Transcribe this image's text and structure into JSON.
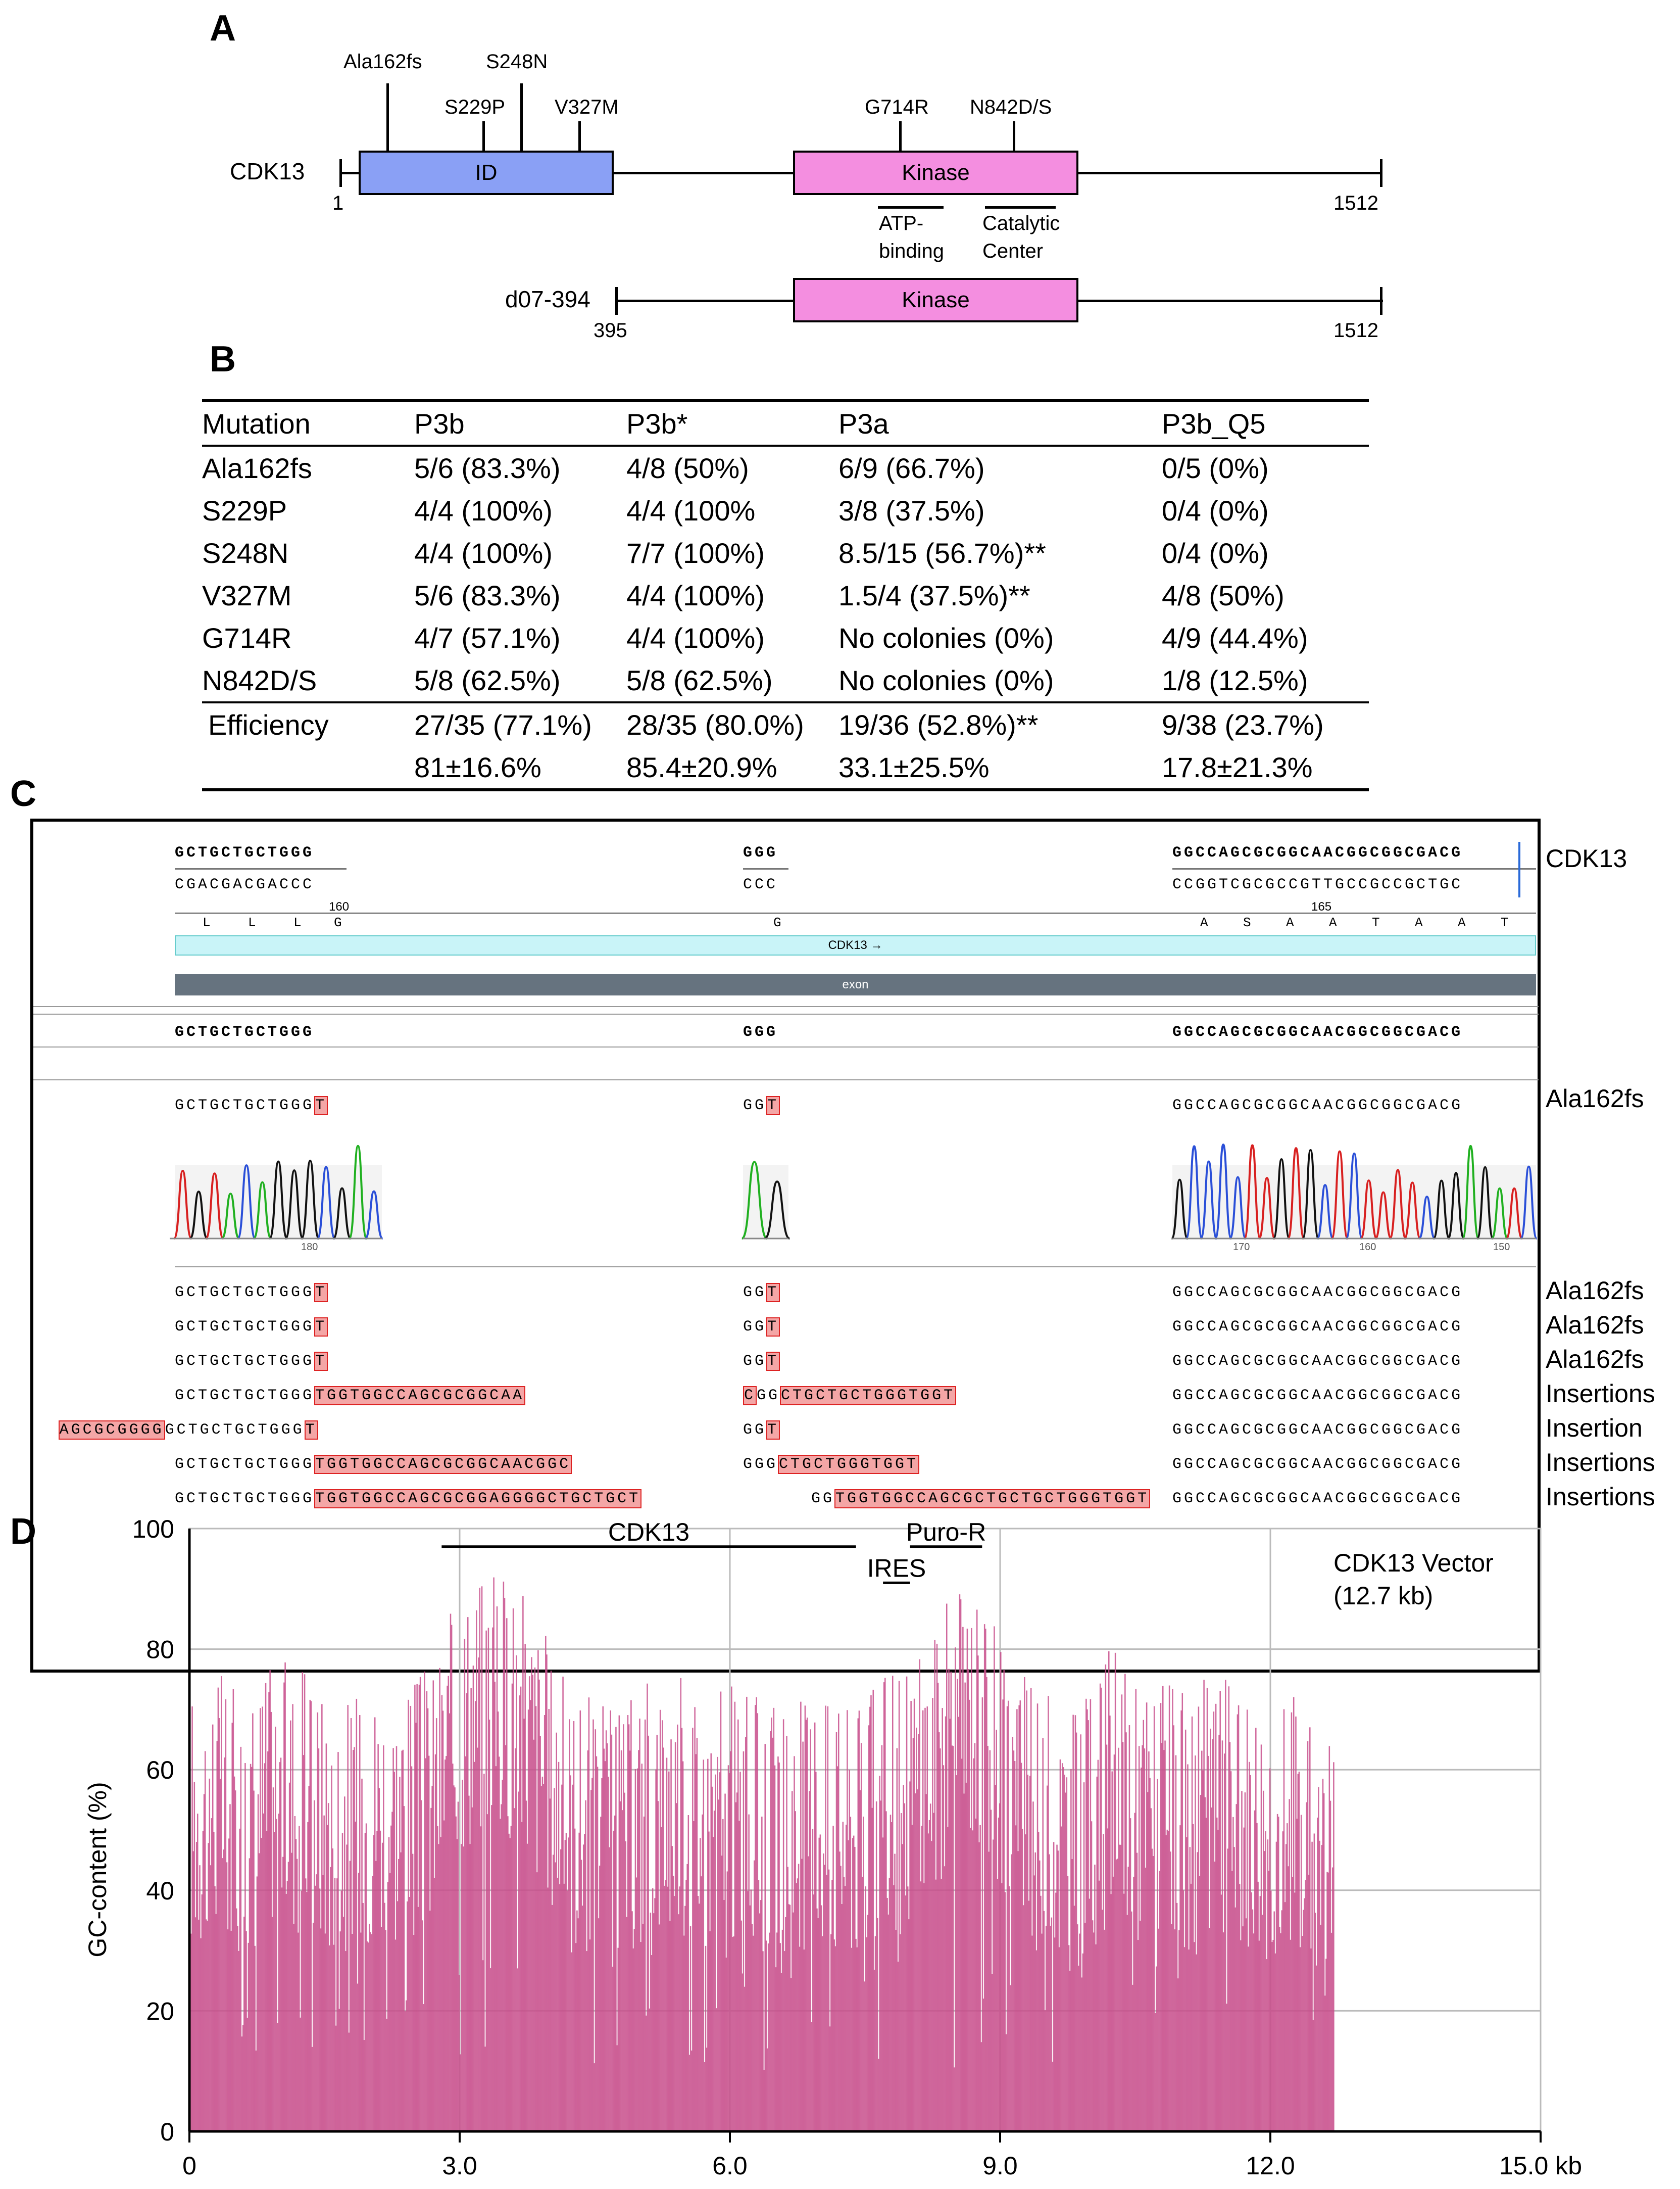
{
  "panels": {
    "a": "A",
    "b": "B",
    "c": "C",
    "d": "D"
  },
  "panel_a": {
    "protein_label": "CDK13",
    "start": "1",
    "end": "1512",
    "domain_id": "ID",
    "domain_kinase": "Kinase",
    "mutations": [
      "Ala162fs",
      "S248N",
      "S229P",
      "V327M",
      "G714R",
      "N842D/S"
    ],
    "atp_binding": [
      "ATP-",
      "binding"
    ],
    "catalytic_center": [
      "Catalytic",
      "Center"
    ],
    "truncated_label": "d07-394",
    "truncated_start": "395",
    "truncated_end": "1512",
    "truncated_kinase": "Kinase"
  },
  "panel_b": {
    "headers": [
      "Mutation",
      "P3b",
      "P3b*",
      "P3a",
      "P3b_Q5"
    ],
    "rows": [
      [
        "Ala162fs",
        "5/6 (83.3%)",
        "4/8 (50%)",
        "6/9 (66.7%)",
        "0/5 (0%)"
      ],
      [
        "S229P",
        "4/4 (100%)",
        "4/4 (100%",
        "3/8 (37.5%)",
        "0/4 (0%)"
      ],
      [
        "S248N",
        "4/4 (100%)",
        "7/7 (100%)",
        "8.5/15 (56.7%)**",
        "0/4 (0%)"
      ],
      [
        "V327M",
        "5/6 (83.3%)",
        "4/4 (100%)",
        "1.5/4 (37.5%)**",
        "4/8 (50%)"
      ],
      [
        "G714R",
        "4/7 (57.1%)",
        "4/4 (100%)",
        "No colonies (0%)",
        "4/9 (44.4%)"
      ],
      [
        "N842D/S",
        "5/8 (62.5%)",
        "5/8 (62.5%)",
        "No colonies (0%)",
        "1/8 (12.5%)"
      ]
    ],
    "efficiency_label": "Efficiency",
    "efficiency": [
      "27/35 (77.1%)",
      "28/35 (80.0%)",
      "19/36 (52.8%)**",
      "9/38 (23.7%)"
    ],
    "mean_sd": [
      "81±16.6%",
      "85.4±20.9%",
      "33.1±25.5%",
      "17.8±21.3%"
    ]
  },
  "panel_c": {
    "ref_top": [
      "GCTGCTGCTGGG",
      "GGG",
      "GGCCAGCGCGGCAACGGCGGCGACG"
    ],
    "ref_comp": [
      "CGACGACGACCC",
      "CCC",
      "CCGGTCGCGCCGTTGCCGCCGCTGC"
    ],
    "pos_160": "160",
    "pos_165": "165",
    "aa_left": [
      "L",
      "L",
      "L",
      "G"
    ],
    "aa_mid": "G",
    "aa_right": [
      "A",
      "S",
      "A",
      "A",
      "T",
      "A",
      "A",
      "T"
    ],
    "gene_bar": "CDK13 →",
    "exon_bar": "exon",
    "consensus": [
      "GCTGCTGCTGGG",
      "GGG",
      "GGCCAGCGCGGCAACGGCGGCGACG"
    ],
    "trace_seq": {
      "left": "GCTGCTGCTGGG",
      "left_ins": "T",
      "mid": "GG",
      "mid_ins": "T",
      "right": "GGCCAGCGCGGCAACGGCGGCGACG"
    },
    "trace_ticks": [
      "180",
      "170",
      "160",
      "150"
    ],
    "right_labels": [
      "CDK13",
      "Ala162fs"
    ],
    "reads": [
      {
        "pre": "",
        "left": "GCTGCTGCTGGG",
        "lins": "T",
        "mpre": "",
        "mid": "GG",
        "mins": "T",
        "mpost": "",
        "right": "GGCCAGCGCGGCAACGGCGGCGACG",
        "label": "Ala162fs"
      },
      {
        "pre": "",
        "left": "GCTGCTGCTGGG",
        "lins": "T",
        "mpre": "",
        "mid": "GG",
        "mins": "T",
        "mpost": "",
        "right": "GGCCAGCGCGGCAACGGCGGCGACG",
        "label": "Ala162fs"
      },
      {
        "pre": "",
        "left": "GCTGCTGCTGGG",
        "lins": "T",
        "mpre": "",
        "mid": "GG",
        "mins": "T",
        "mpost": "",
        "right": "GGCCAGCGCGGCAACGGCGGCGACG",
        "label": "Ala162fs"
      },
      {
        "pre": "",
        "left": "GCTGCTGCTGGG",
        "lins": "TGGTGGCCAGCGCGGCAA",
        "mpre": "C",
        "mid": "GG",
        "mins": "CTGCTGCTGGGTGGT",
        "mpost": "",
        "right": "GGCCAGCGCGGCAACGGCGGCGACG",
        "label": "Insertions"
      },
      {
        "pre": "AGCGCGGGG",
        "left": "GCTGCTGCTGGG",
        "lins": "T",
        "mpre": "",
        "mid": "GG",
        "mins": "T",
        "mpost": "",
        "right": "GGCCAGCGCGGCAACGGCGGCGACG",
        "label": "Insertion"
      },
      {
        "pre": "",
        "left": "GCTGCTGCTGGG",
        "lins": "TGGTGGCCAGCGCGGCAACGGC",
        "mpre": "",
        "mid": "GGG",
        "mins": "CTGCTGGGTGGT",
        "mpost": "",
        "right": "GGCCAGCGCGGCAACGGCGGCGACG",
        "label": "Insertions"
      },
      {
        "pre": "",
        "left": "GCTGCTGCTGGG",
        "lins": "TGGTGGCCAGCGCGGAGGGGCTGCTGCT",
        "mpre": "",
        "mid": "GG",
        "mins": "TGGTGGCCAGCGCTGCTGCTGGGTGGT",
        "mpost": "",
        "right": "GGCCAGCGCGGCAACGGCGGCGACG",
        "label": "Insertions"
      }
    ]
  },
  "chart_data": {
    "type": "bar",
    "title": "CDK13 Vector",
    "subtitle": "(12.7 kb)",
    "xlabel": "kb",
    "ylabel": "GC-content (%)",
    "xlim": [
      0,
      15.0
    ],
    "ylim": [
      0,
      100
    ],
    "xticks": [
      "0",
      "3.0",
      "6.0",
      "9.0",
      "12.0",
      "15.0 kb"
    ],
    "yticks": [
      "0",
      "20",
      "40",
      "60",
      "80",
      "100"
    ],
    "bar_color": "#c84f8c",
    "grid": true,
    "annotations": [
      {
        "label": "CDK13",
        "x_start": 2.8,
        "x_end": 7.4,
        "y": 97
      },
      {
        "label": "IRES",
        "x_start": 7.7,
        "x_end": 8.0,
        "y": 91
      },
      {
        "label": "Puro-R",
        "x_start": 8.0,
        "x_end": 8.8,
        "y": 97
      }
    ],
    "x": [
      0.0,
      0.3,
      0.6,
      0.9,
      1.2,
      1.5,
      1.8,
      2.1,
      2.4,
      2.7,
      3.0,
      3.3,
      3.6,
      3.9,
      4.2,
      4.5,
      4.8,
      5.1,
      5.4,
      5.7,
      6.0,
      6.3,
      6.6,
      6.9,
      7.2,
      7.5,
      7.8,
      8.1,
      8.4,
      8.7,
      9.0,
      9.3,
      9.6,
      9.9,
      10.2,
      10.5,
      10.8,
      11.1,
      11.4,
      11.7,
      12.0,
      12.3,
      12.6
    ],
    "values": [
      52,
      55,
      50,
      57,
      55,
      52,
      50,
      54,
      52,
      56,
      68,
      72,
      70,
      62,
      52,
      50,
      48,
      54,
      55,
      52,
      52,
      50,
      48,
      52,
      50,
      50,
      55,
      58,
      66,
      70,
      62,
      52,
      50,
      48,
      58,
      54,
      52,
      50,
      55,
      52,
      50,
      52,
      45
    ]
  }
}
